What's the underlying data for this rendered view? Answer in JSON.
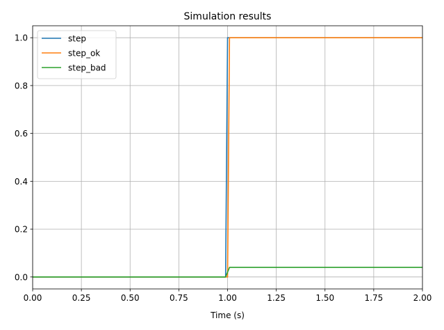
{
  "chart_data": {
    "type": "line",
    "title": "Simulation results",
    "xlabel": "Time (s)",
    "ylabel": "",
    "xlim": [
      0,
      2
    ],
    "ylim": [
      -0.05,
      1.05
    ],
    "xticks": [
      "0.00",
      "0.25",
      "0.50",
      "0.75",
      "1.00",
      "1.25",
      "1.50",
      "1.75",
      "2.00"
    ],
    "yticks": [
      "0.0",
      "0.2",
      "0.4",
      "0.6",
      "0.8",
      "1.0"
    ],
    "grid": true,
    "legend": "top-left",
    "series": [
      {
        "name": "step",
        "color": "#1f77b4",
        "x": [
          0,
          0.99,
          1.0,
          2.0
        ],
        "y": [
          0,
          0,
          1.0,
          1.0
        ]
      },
      {
        "name": "step_ok",
        "color": "#ff7f0e",
        "x": [
          0,
          1.0,
          1.01,
          2.0
        ],
        "y": [
          0,
          0,
          1.0,
          1.0
        ]
      },
      {
        "name": "step_bad",
        "color": "#2ca02c",
        "x": [
          0,
          0.99,
          1.01,
          2.0
        ],
        "y": [
          0,
          0,
          0.04,
          0.04
        ]
      }
    ]
  }
}
